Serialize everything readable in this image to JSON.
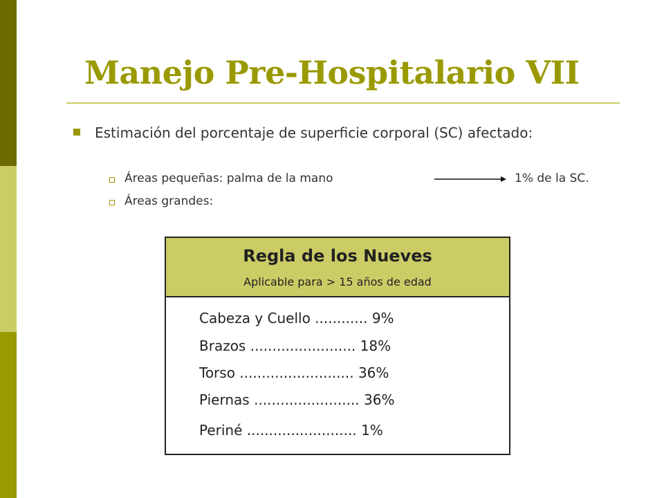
{
  "slide": {
    "title": "Manejo Pre-Hospitalario VII",
    "bullet": "Estimación del porcentaje de superficie corporal (SC) afectado:",
    "sub_items": [
      {
        "label": "Áreas pequeñas: palma de la mano",
        "value": "1% de la SC."
      },
      {
        "label": "Áreas grandes:"
      }
    ]
  },
  "rule_box": {
    "title": "Regla de los Nueves",
    "subtitle": "Aplicable para > 15 años de edad",
    "items": [
      "Cabeza y Cuello ............ 9%",
      "Brazos ........................  18%",
      "Torso .......................... 36%",
      "Piernas ........................ 36%",
      "Periné .........................  1%"
    ]
  },
  "colors": {
    "accent": "#999900",
    "dark_bar": "#6b6b00",
    "light_bar": "#cccc66",
    "header_fill": "#cccc66"
  }
}
